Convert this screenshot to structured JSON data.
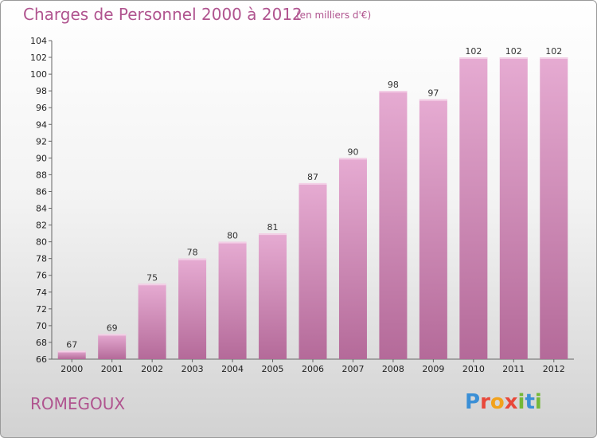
{
  "header": {
    "title": "Charges de Personnel 2000 à 2012",
    "subtitle": "(en milliers d'€)"
  },
  "footer": {
    "place": "ROMEGOUX",
    "logo": "Proxiti"
  },
  "colors": {
    "title": "#b0548f",
    "bar_top": "#e4a8cf",
    "bar_bottom": "#b76d9b"
  },
  "chart_data": {
    "type": "bar",
    "categories": [
      "2000",
      "2001",
      "2002",
      "2003",
      "2004",
      "2005",
      "2006",
      "2007",
      "2008",
      "2009",
      "2010",
      "2011",
      "2012"
    ],
    "values": [
      67,
      69,
      75,
      78,
      80,
      81,
      87,
      90,
      98,
      97,
      102,
      102,
      102
    ],
    "ylim": [
      66,
      104
    ],
    "yticks": [
      66,
      68,
      70,
      72,
      74,
      76,
      78,
      80,
      82,
      84,
      86,
      88,
      90,
      92,
      94,
      96,
      98,
      100,
      102,
      104
    ],
    "grid": false
  }
}
